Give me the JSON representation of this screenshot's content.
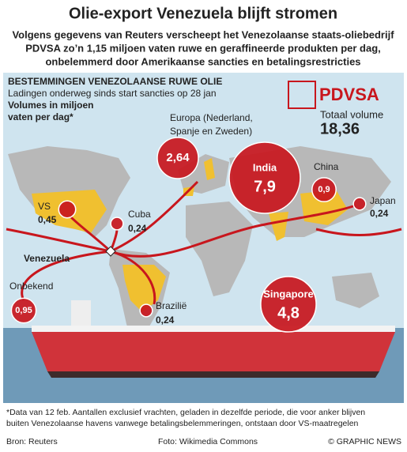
{
  "header": {
    "title": "Olie-export Venezuela blijft stromen",
    "subtitle": [
      "Volgens gegevens van Reuters verscheept het Venezolaanse staats-oliebedrijf",
      "PDVSA zo’n 1,15 miljoen vaten ruwe en geraffineerde produkten per dag,",
      "onbelemmerd door Amerikaanse sancties en betalingsrestricties"
    ]
  },
  "map": {
    "heading": "BESTEMMINGEN VENEZOLAANSE RUWE OLIE",
    "subheading": "Ladingen onderweg sinds start sancties op 28 jan",
    "units": [
      "Volumes in miljoen",
      "vaten per dag*"
    ],
    "logo": "PDVSA",
    "total_label": "Totaal volume",
    "total": "18,36",
    "origin": "Venezuela",
    "color": "#c8161d",
    "names": [
      "VS",
      "Cuba",
      "Europa (Nederland,",
      "India",
      "China",
      "Japan",
      "Singapore",
      "Brazilië",
      "Onbekend"
    ],
    "name_extra": "Spanje en Zweden)",
    "values": [
      0.45,
      0.24,
      2.64,
      7.9,
      0.9,
      0.24,
      4.8,
      0.24,
      0.95
    ],
    "value_labels": [
      "0,45",
      "0,24",
      "2,64",
      "7,9",
      "0,9",
      "0,24",
      "4,8",
      "0,24",
      "0,95"
    ]
  },
  "footer": {
    "note": [
      "*Data van 12 feb. Aantallen exclusief vrachten, geladen in dezelfde periode, die voor anker blijven",
      "buiten Venezolaanse havens vanwege betalingsbelemmeringen, ontstaan door VS-maatregelen"
    ],
    "source": "Bron: Reuters",
    "photo": "Foto: Wikimedia Commons",
    "credit": "© GRAPHIC NEWS"
  }
}
